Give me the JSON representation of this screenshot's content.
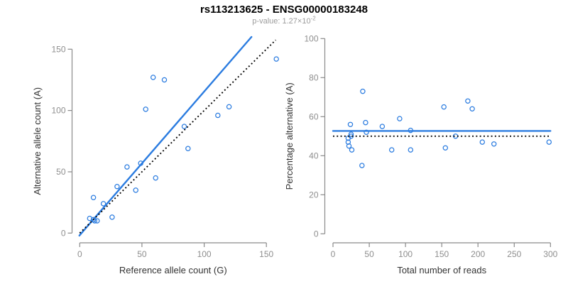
{
  "header": {
    "title": "rs113213625 - ENSG00000183248",
    "pvalue_base": "p-value: 1.27×10",
    "pvalue_exponent": "-2"
  },
  "colors": {
    "blue": "#2b7ce0",
    "black": "#000000",
    "axis": "#8a8a8a",
    "tick_label": "#8e8e8e",
    "axis_title": "#333333",
    "title": "#000000",
    "subtitle": "#9c9c9c"
  },
  "chart_data": [
    {
      "type": "scatter",
      "title": "",
      "xlabel": "Reference allele count (G)",
      "ylabel": "Alternative allele count (A)",
      "xlim": [
        0,
        150
      ],
      "ylim": [
        0,
        150
      ],
      "xticks": [
        0,
        50,
        100,
        150
      ],
      "yticks": [
        0,
        50,
        100,
        150
      ],
      "grid": false,
      "legend": "none",
      "points": [
        [
          8,
          12
        ],
        [
          11,
          11
        ],
        [
          12,
          10
        ],
        [
          14,
          10
        ],
        [
          26,
          13
        ],
        [
          19,
          24
        ],
        [
          11,
          29
        ],
        [
          30,
          38
        ],
        [
          45,
          35
        ],
        [
          38,
          54
        ],
        [
          49,
          57
        ],
        [
          61,
          45
        ],
        [
          53,
          101
        ],
        [
          59,
          127
        ],
        [
          68,
          125
        ],
        [
          84,
          87
        ],
        [
          87,
          69
        ],
        [
          111,
          96
        ],
        [
          120,
          103
        ],
        [
          158,
          142
        ]
      ],
      "lines": [
        {
          "name": "fit-line",
          "style": "solid",
          "color_key": "blue",
          "endpoints": [
            [
              -0.3,
              -2
            ],
            [
              138,
              160
            ]
          ]
        },
        {
          "name": "identity-line",
          "style": "dotted",
          "color_key": "black",
          "endpoints": [
            [
              0,
              0
            ],
            [
              157.5,
              157.5
            ]
          ]
        }
      ]
    },
    {
      "type": "scatter",
      "title": "",
      "xlabel": "Total number of reads",
      "ylabel": "Percentage alternative (A)",
      "xlim": [
        0,
        300
      ],
      "ylim": [
        0,
        100
      ],
      "xticks": [
        0,
        50,
        100,
        150,
        200,
        250,
        300
      ],
      "yticks": [
        0,
        20,
        40,
        60,
        80,
        100
      ],
      "grid": false,
      "legend": "none",
      "points": [
        [
          24,
          56
        ],
        [
          41,
          73
        ],
        [
          45,
          57
        ],
        [
          46,
          52
        ],
        [
          68,
          55
        ],
        [
          92,
          59
        ],
        [
          107,
          53
        ],
        [
          25,
          51
        ],
        [
          25,
          50
        ],
        [
          21,
          49
        ],
        [
          21,
          47
        ],
        [
          22,
          45
        ],
        [
          26,
          43
        ],
        [
          40,
          35
        ],
        [
          81,
          43
        ],
        [
          107,
          43
        ],
        [
          153,
          65
        ],
        [
          155,
          44
        ],
        [
          169,
          50
        ],
        [
          186,
          68
        ],
        [
          192,
          64
        ],
        [
          206,
          47
        ],
        [
          222,
          46
        ],
        [
          298,
          47
        ]
      ],
      "lines": [
        {
          "name": "fit-line",
          "style": "solid",
          "color_key": "blue",
          "endpoints": [
            [
              0,
              52.7
            ],
            [
              300,
              52.7
            ]
          ]
        },
        {
          "name": "expected-line",
          "style": "dotted",
          "color_key": "black",
          "endpoints": [
            [
              0,
              50
            ],
            [
              300,
              50
            ]
          ]
        }
      ]
    }
  ]
}
